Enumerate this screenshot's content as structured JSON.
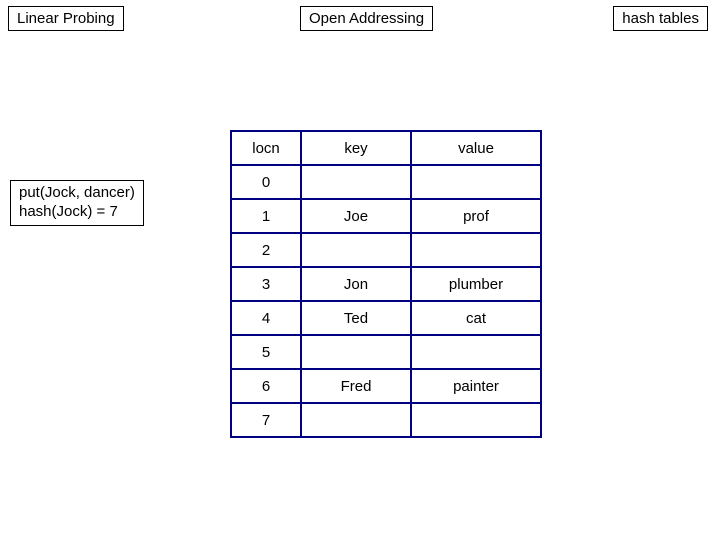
{
  "title": "Linear Probing",
  "center_label": "Open Addressing",
  "right_label": "hash tables",
  "note_line1": "put(Jock, dancer)",
  "note_line2": "hash(Jock) = 7",
  "colors": {
    "table_border": "#000080",
    "background": "#ffffff",
    "text": "#000000"
  },
  "table": {
    "headers": {
      "locn": "locn",
      "key": "key",
      "value": "value"
    },
    "rows": [
      {
        "locn": "0",
        "key": "",
        "value": ""
      },
      {
        "locn": "1",
        "key": "Joe",
        "value": "prof"
      },
      {
        "locn": "2",
        "key": "",
        "value": ""
      },
      {
        "locn": "3",
        "key": "Jon",
        "value": "plumber"
      },
      {
        "locn": "4",
        "key": "Ted",
        "value": "cat"
      },
      {
        "locn": "5",
        "key": "",
        "value": ""
      },
      {
        "locn": "6",
        "key": "Fred",
        "value": "painter"
      },
      {
        "locn": "7",
        "key": "",
        "value": ""
      }
    ]
  }
}
